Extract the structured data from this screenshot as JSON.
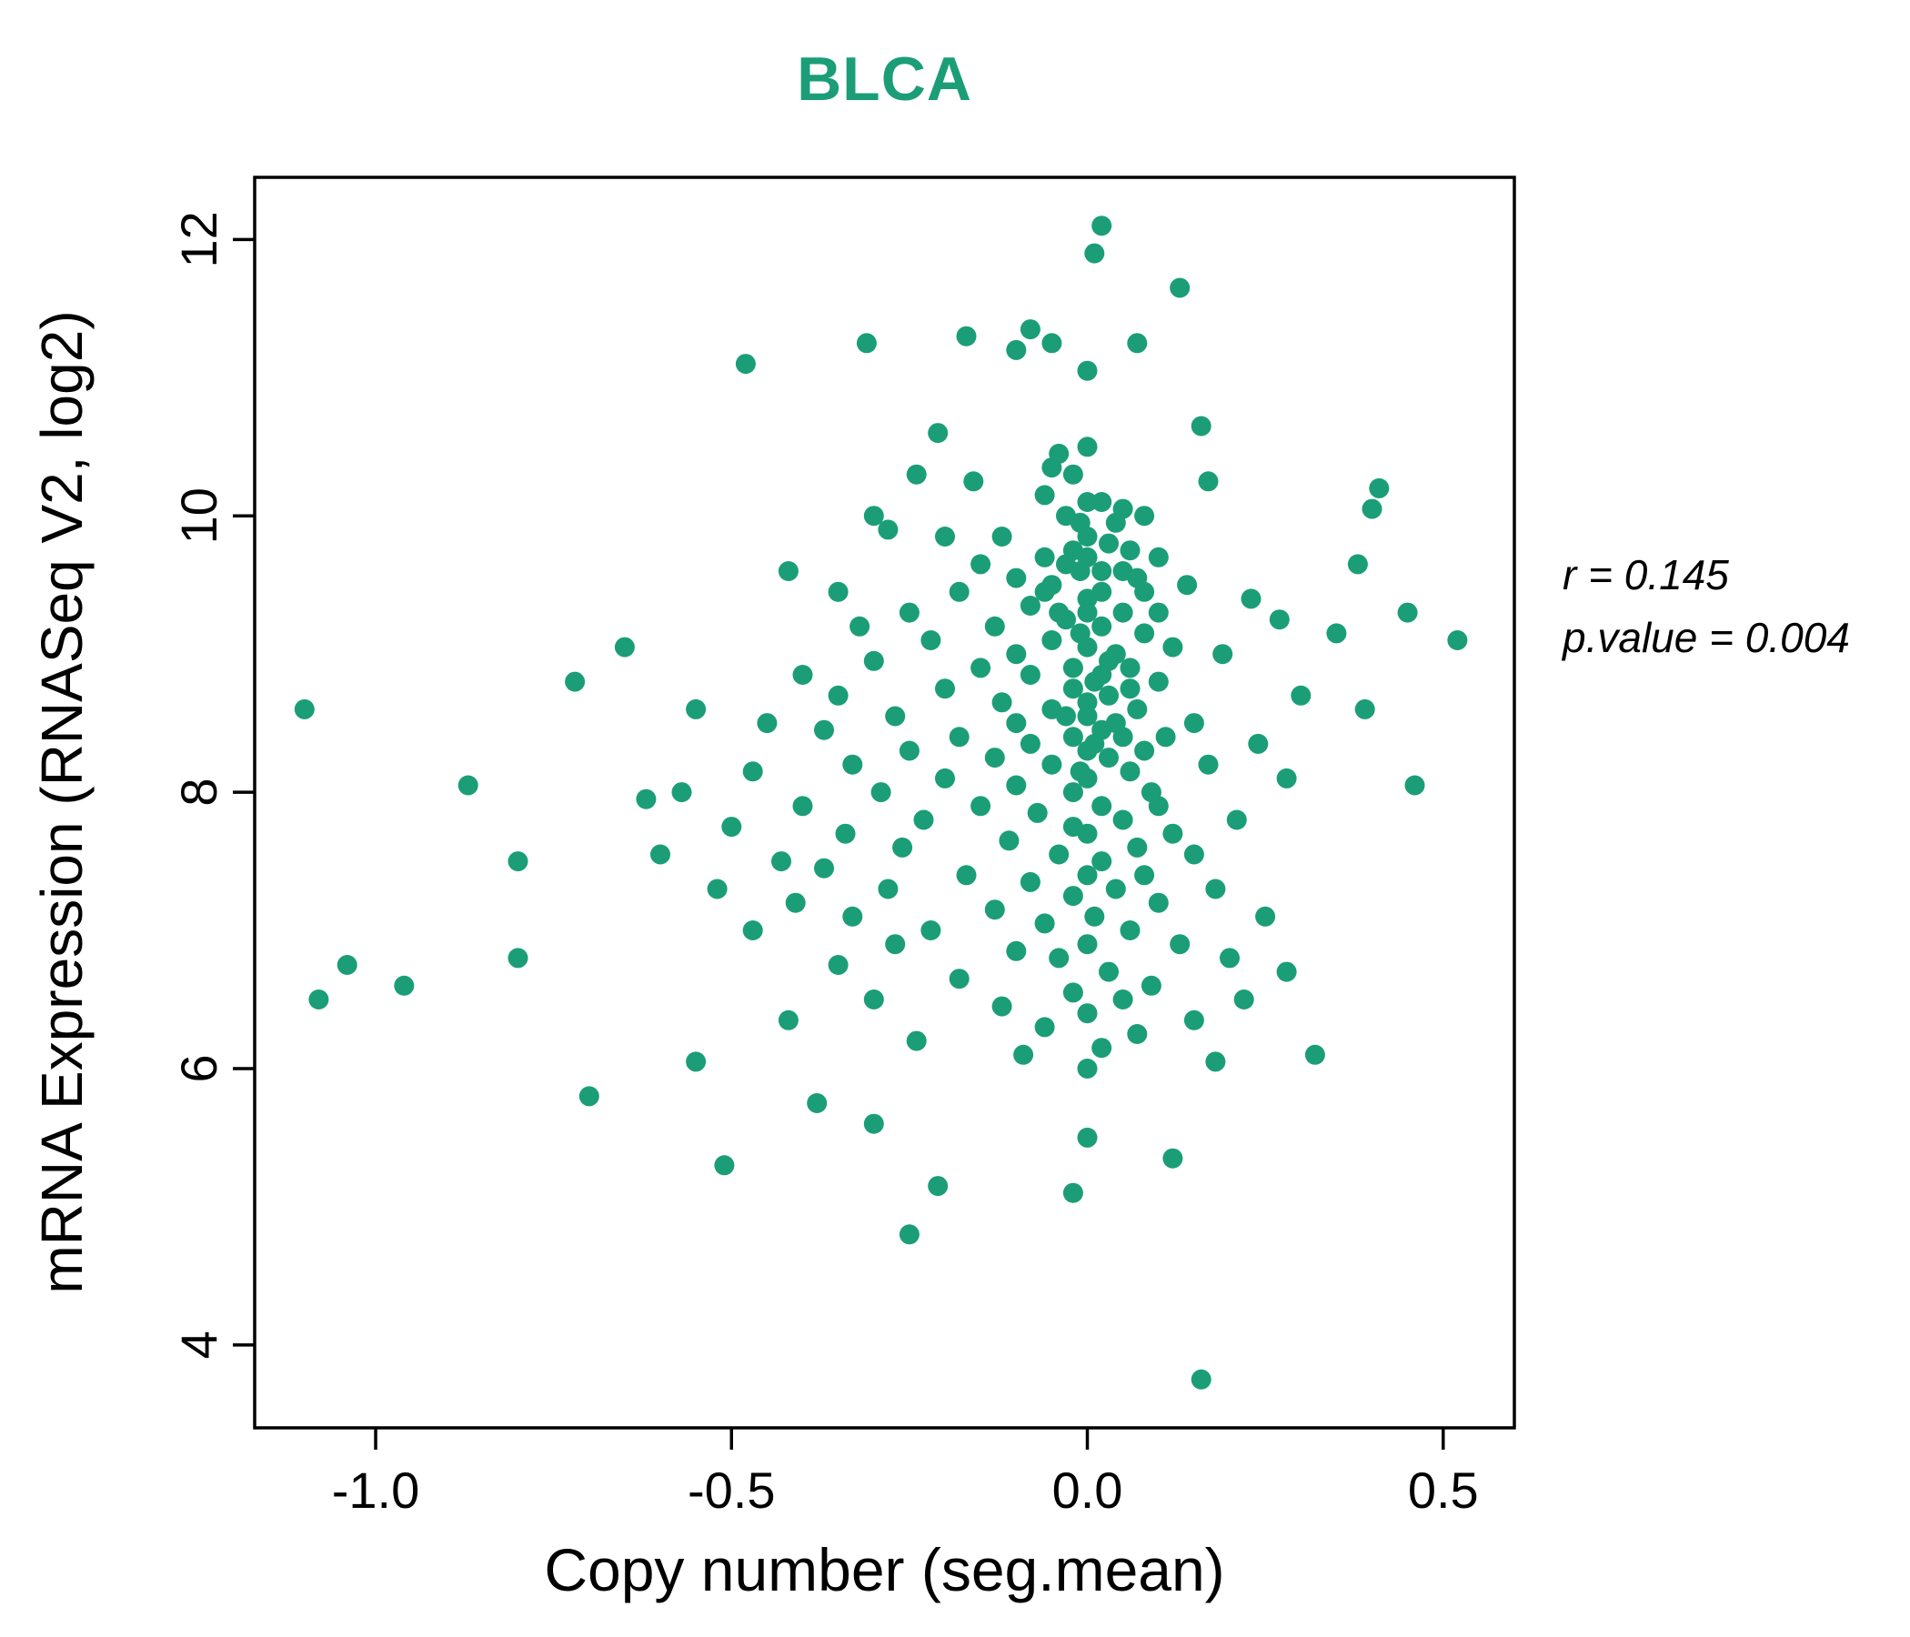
{
  "title": "BLCA",
  "annotation": {
    "line1": "r = 0.145",
    "line2": "p.value = 0.004"
  },
  "chart_data": {
    "type": "scatter",
    "title": "BLCA",
    "xlabel": "Copy number (seg.mean)",
    "ylabel": "mRNA Expression (RNASeq V2, log2)",
    "xlim": [
      -1.17,
      0.6
    ],
    "ylim": [
      3.4,
      12.45
    ],
    "x_ticks": [
      -1.0,
      -0.5,
      0.0,
      0.5
    ],
    "x_tick_labels": [
      "-1.0",
      "-0.5",
      "0.0",
      "0.5"
    ],
    "y_ticks": [
      4,
      6,
      8,
      10,
      12
    ],
    "y_tick_labels": [
      "4",
      "6",
      "8",
      "10",
      "12"
    ],
    "grid": false,
    "legend": "none",
    "point_color": "#1B9E77",
    "title_color": "#1B9E77",
    "r": 0.145,
    "p_value": 0.004,
    "points": [
      [
        0.02,
        12.1
      ],
      [
        0.01,
        11.9
      ],
      [
        0.13,
        11.65
      ],
      [
        -0.17,
        11.3
      ],
      [
        -0.08,
        11.35
      ],
      [
        -0.05,
        11.25
      ],
      [
        -0.1,
        11.2
      ],
      [
        0.07,
        11.25
      ],
      [
        -0.31,
        11.25
      ],
      [
        -0.48,
        11.1
      ],
      [
        0.0,
        11.05
      ],
      [
        0.16,
        10.65
      ],
      [
        -0.21,
        10.6
      ],
      [
        0.0,
        10.5
      ],
      [
        -0.04,
        10.45
      ],
      [
        -0.05,
        10.35
      ],
      [
        -0.02,
        10.3
      ],
      [
        -0.24,
        10.3
      ],
      [
        -0.16,
        10.25
      ],
      [
        0.17,
        10.25
      ],
      [
        0.41,
        10.2
      ],
      [
        -0.06,
        10.15
      ],
      [
        0.0,
        10.1
      ],
      [
        0.02,
        10.1
      ],
      [
        0.05,
        10.05
      ],
      [
        0.4,
        10.05
      ],
      [
        -0.3,
        10.0
      ],
      [
        -0.03,
        10.0
      ],
      [
        0.08,
        10.0
      ],
      [
        -0.01,
        9.95
      ],
      [
        0.04,
        9.95
      ],
      [
        -0.28,
        9.9
      ],
      [
        -0.2,
        9.85
      ],
      [
        -0.12,
        9.85
      ],
      [
        0.0,
        9.85
      ],
      [
        0.03,
        9.8
      ],
      [
        -0.02,
        9.75
      ],
      [
        0.06,
        9.75
      ],
      [
        0.1,
        9.7
      ],
      [
        -0.06,
        9.7
      ],
      [
        -0.15,
        9.65
      ],
      [
        0.38,
        9.65
      ],
      [
        -0.42,
        9.6
      ],
      [
        -0.01,
        9.6
      ],
      [
        0.02,
        9.6
      ],
      [
        -0.1,
        9.55
      ],
      [
        0.07,
        9.55
      ],
      [
        0.14,
        9.5
      ],
      [
        -0.05,
        9.5
      ],
      [
        0.0,
        9.7
      ],
      [
        -0.03,
        9.65
      ],
      [
        0.05,
        9.6
      ],
      [
        -0.35,
        9.45
      ],
      [
        -0.18,
        9.45
      ],
      [
        0.0,
        9.4
      ],
      [
        0.23,
        9.4
      ],
      [
        0.45,
        9.3
      ],
      [
        -0.08,
        9.35
      ],
      [
        -0.25,
        9.3
      ],
      [
        0.05,
        9.3
      ],
      [
        0.1,
        9.3
      ],
      [
        -0.03,
        9.25
      ],
      [
        0.27,
        9.25
      ],
      [
        -0.32,
        9.2
      ],
      [
        -0.13,
        9.2
      ],
      [
        0.02,
        9.2
      ],
      [
        0.08,
        9.15
      ],
      [
        0.35,
        9.15
      ],
      [
        -0.22,
        9.1
      ],
      [
        -0.65,
        9.05
      ],
      [
        0.52,
        9.1
      ],
      [
        -0.05,
        9.1
      ],
      [
        0.0,
        9.05
      ],
      [
        0.12,
        9.05
      ],
      [
        -0.1,
        9.0
      ],
      [
        0.04,
        9.0
      ],
      [
        0.19,
        9.0
      ],
      [
        0.02,
        9.45
      ],
      [
        -0.04,
        9.3
      ],
      [
        -0.01,
        9.15
      ],
      [
        -0.06,
        9.45
      ],
      [
        0.08,
        9.45
      ],
      [
        0.0,
        9.3
      ],
      [
        -0.3,
        8.95
      ],
      [
        -0.15,
        8.9
      ],
      [
        -0.02,
        8.9
      ],
      [
        0.06,
        8.9
      ],
      [
        -0.72,
        8.8
      ],
      [
        -0.4,
        8.85
      ],
      [
        -0.08,
        8.85
      ],
      [
        0.01,
        8.8
      ],
      [
        0.1,
        8.8
      ],
      [
        -0.2,
        8.75
      ],
      [
        -0.35,
        8.7
      ],
      [
        0.03,
        8.7
      ],
      [
        0.3,
        8.7
      ],
      [
        -0.55,
        8.6
      ],
      [
        -0.12,
        8.65
      ],
      [
        -0.05,
        8.6
      ],
      [
        0.07,
        8.6
      ],
      [
        0.39,
        8.6
      ],
      [
        -1.1,
        8.6
      ],
      [
        -0.27,
        8.55
      ],
      [
        0.0,
        8.55
      ],
      [
        0.15,
        8.5
      ],
      [
        -0.45,
        8.5
      ],
      [
        -0.1,
        8.5
      ],
      [
        0.03,
        8.95
      ],
      [
        -0.02,
        8.75
      ],
      [
        0.06,
        8.75
      ],
      [
        0.0,
        8.65
      ],
      [
        0.02,
        8.85
      ],
      [
        -0.37,
        8.45
      ],
      [
        -0.18,
        8.4
      ],
      [
        -0.02,
        8.4
      ],
      [
        0.05,
        8.4
      ],
      [
        0.11,
        8.4
      ],
      [
        -0.08,
        8.35
      ],
      [
        0.24,
        8.35
      ],
      [
        -0.25,
        8.3
      ],
      [
        0.0,
        8.3
      ],
      [
        0.08,
        8.3
      ],
      [
        -0.13,
        8.25
      ],
      [
        0.03,
        8.25
      ],
      [
        0.17,
        8.2
      ],
      [
        -0.33,
        8.2
      ],
      [
        -0.05,
        8.2
      ],
      [
        -0.47,
        8.15
      ],
      [
        0.06,
        8.15
      ],
      [
        -0.2,
        8.1
      ],
      [
        0.0,
        8.1
      ],
      [
        0.28,
        8.1
      ],
      [
        -0.87,
        8.05
      ],
      [
        -0.1,
        8.05
      ],
      [
        0.46,
        8.05
      ],
      [
        -0.02,
        8.0
      ],
      [
        0.09,
        8.0
      ],
      [
        -0.57,
        8.0
      ],
      [
        -0.29,
        8.0
      ],
      [
        0.02,
        8.45
      ],
      [
        -0.03,
        8.55
      ],
      [
        0.04,
        8.5
      ],
      [
        0.01,
        8.35
      ],
      [
        -0.01,
        8.15
      ],
      [
        -0.62,
        7.95
      ],
      [
        -0.4,
        7.9
      ],
      [
        -0.15,
        7.9
      ],
      [
        0.02,
        7.9
      ],
      [
        0.1,
        7.9
      ],
      [
        -0.07,
        7.85
      ],
      [
        -0.23,
        7.8
      ],
      [
        0.05,
        7.8
      ],
      [
        0.21,
        7.8
      ],
      [
        -0.5,
        7.75
      ],
      [
        -0.02,
        7.75
      ],
      [
        -0.34,
        7.7
      ],
      [
        0.0,
        7.7
      ],
      [
        0.12,
        7.7
      ],
      [
        -0.11,
        7.65
      ],
      [
        0.07,
        7.6
      ],
      [
        -0.26,
        7.6
      ],
      [
        -0.04,
        7.55
      ],
      [
        0.15,
        7.55
      ],
      [
        -0.6,
        7.55
      ],
      [
        -0.8,
        7.5
      ],
      [
        -0.43,
        7.5
      ],
      [
        0.02,
        7.5
      ],
      [
        -0.37,
        7.45
      ],
      [
        -0.17,
        7.4
      ],
      [
        0.0,
        7.4
      ],
      [
        0.08,
        7.4
      ],
      [
        -0.08,
        7.35
      ],
      [
        -0.52,
        7.3
      ],
      [
        -0.28,
        7.3
      ],
      [
        0.04,
        7.3
      ],
      [
        0.18,
        7.3
      ],
      [
        -0.02,
        7.25
      ],
      [
        -0.41,
        7.2
      ],
      [
        0.1,
        7.2
      ],
      [
        -0.13,
        7.15
      ],
      [
        -0.33,
        7.1
      ],
      [
        0.01,
        7.1
      ],
      [
        0.25,
        7.1
      ],
      [
        -0.06,
        7.05
      ],
      [
        0.06,
        7.0
      ],
      [
        -0.22,
        7.0
      ],
      [
        -0.47,
        7.0
      ],
      [
        -0.27,
        6.9
      ],
      [
        0.0,
        6.9
      ],
      [
        0.13,
        6.9
      ],
      [
        -0.1,
        6.85
      ],
      [
        -0.8,
        6.8
      ],
      [
        -0.04,
        6.8
      ],
      [
        0.2,
        6.8
      ],
      [
        -1.04,
        6.75
      ],
      [
        -0.35,
        6.75
      ],
      [
        0.03,
        6.7
      ],
      [
        0.28,
        6.7
      ],
      [
        -0.18,
        6.65
      ],
      [
        0.09,
        6.6
      ],
      [
        -0.96,
        6.6
      ],
      [
        -0.02,
        6.55
      ],
      [
        -1.08,
        6.5
      ],
      [
        -0.3,
        6.5
      ],
      [
        0.05,
        6.5
      ],
      [
        0.22,
        6.5
      ],
      [
        -0.12,
        6.45
      ],
      [
        0.0,
        6.4
      ],
      [
        -0.42,
        6.35
      ],
      [
        0.15,
        6.35
      ],
      [
        -0.06,
        6.3
      ],
      [
        0.07,
        6.25
      ],
      [
        -0.24,
        6.2
      ],
      [
        0.02,
        6.15
      ],
      [
        0.32,
        6.1
      ],
      [
        -0.09,
        6.1
      ],
      [
        0.18,
        6.05
      ],
      [
        -0.55,
        6.05
      ],
      [
        0.0,
        6.0
      ],
      [
        -0.7,
        5.8
      ],
      [
        -0.38,
        5.75
      ],
      [
        -0.3,
        5.6
      ],
      [
        0.0,
        5.5
      ],
      [
        0.12,
        5.35
      ],
      [
        -0.51,
        5.3
      ],
      [
        -0.21,
        5.15
      ],
      [
        -0.02,
        5.1
      ],
      [
        -0.25,
        4.8
      ],
      [
        0.16,
        3.75
      ]
    ]
  }
}
